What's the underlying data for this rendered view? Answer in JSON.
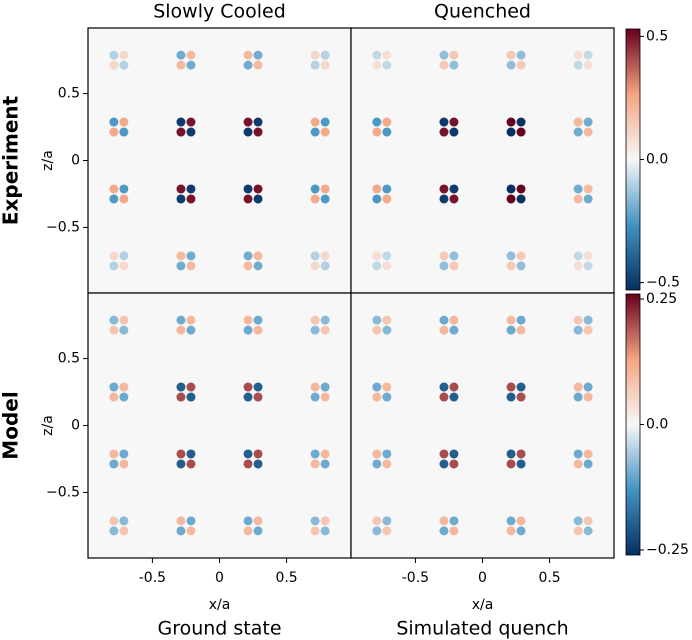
{
  "chart_data": [
    {
      "type": "heatmap",
      "title": "Slowly Cooled",
      "row_label": "Experiment",
      "ylabel": "z/a",
      "xlim": [
        -0.98,
        0.98
      ],
      "ylim": [
        -0.99,
        0.99
      ],
      "yticks": [
        {
          "value": -0.5,
          "label": "−0.5"
        },
        0,
        0.5
      ],
      "x": [
        -0.75,
        -0.25,
        0.25,
        0.75
      ],
      "z": [
        0.75,
        0.25,
        -0.25,
        -0.75
      ],
      "values": [
        [
          0.1,
          0.2,
          0.2,
          0.1
        ],
        [
          0.25,
          0.5,
          0.5,
          0.25
        ],
        [
          0.25,
          0.5,
          0.5,
          0.25
        ],
        [
          0.1,
          0.2,
          0.2,
          0.1
        ]
      ]
    },
    {
      "type": "heatmap",
      "title": "Quenched",
      "xlim": [
        -0.98,
        0.98
      ],
      "ylim": [
        -0.99,
        0.99
      ],
      "x": [
        -0.75,
        -0.25,
        0.25,
        0.75
      ],
      "z": [
        0.75,
        0.25,
        -0.25,
        -0.75
      ],
      "values": [
        [
          0.08,
          0.15,
          0.15,
          0.08
        ],
        [
          0.25,
          0.5,
          0.55,
          0.2
        ],
        [
          0.25,
          0.5,
          0.55,
          0.2
        ],
        [
          0.08,
          0.15,
          0.15,
          0.08
        ]
      ],
      "colorbar": {
        "colormap": "RdBu_r",
        "lim": [
          -0.53,
          0.53
        ],
        "ticks": [
          {
            "value": -0.5,
            "label": "−0.5"
          },
          {
            "value": 0,
            "label": "0.0"
          },
          0.5
        ]
      }
    },
    {
      "type": "heatmap",
      "row_label": "Model",
      "ylabel": "z/a",
      "xlabel": "x/a",
      "subtitle": "Ground state",
      "xlim": [
        -0.98,
        0.98
      ],
      "ylim": [
        -0.99,
        0.99
      ],
      "xticks": [
        {
          "value": -0.5,
          "label": "-0.5"
        },
        0,
        0.5
      ],
      "yticks": [
        {
          "value": -0.5,
          "label": "−0.5"
        },
        0,
        0.5
      ],
      "x": [
        -0.75,
        -0.25,
        0.25,
        0.75
      ],
      "z": [
        0.75,
        0.25,
        -0.25,
        -0.75
      ],
      "values": [
        [
          0.08,
          0.1,
          0.1,
          0.08
        ],
        [
          0.1,
          0.2,
          0.2,
          0.1
        ],
        [
          0.1,
          0.2,
          0.2,
          0.1
        ],
        [
          0.08,
          0.1,
          0.1,
          0.08
        ]
      ]
    },
    {
      "type": "heatmap",
      "xlabel": "x/a",
      "subtitle": "Simulated quench",
      "xlim": [
        -0.98,
        0.98
      ],
      "ylim": [
        -0.99,
        0.99
      ],
      "xticks": [
        {
          "value": -0.5,
          "label": "-0.5"
        },
        0,
        0.5
      ],
      "x": [
        -0.75,
        -0.25,
        0.25,
        0.75
      ],
      "z": [
        0.75,
        0.25,
        -0.25,
        -0.75
      ],
      "values": [
        [
          0.08,
          0.1,
          0.1,
          0.08
        ],
        [
          0.1,
          0.2,
          0.2,
          0.1
        ],
        [
          0.1,
          0.2,
          0.2,
          0.1
        ],
        [
          0.08,
          0.1,
          0.1,
          0.08
        ]
      ],
      "colorbar": {
        "colormap": "RdBu_r",
        "lim": [
          -0.26,
          0.26
        ],
        "ticks": [
          {
            "value": -0.25,
            "label": "−0.25"
          },
          {
            "value": 0,
            "label": "0.0"
          },
          0.25
        ]
      }
    }
  ]
}
